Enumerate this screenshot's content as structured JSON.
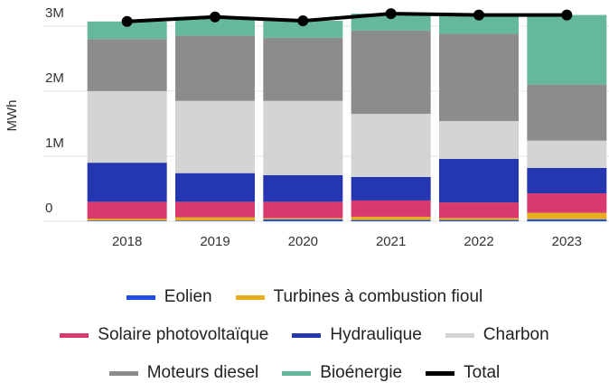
{
  "chart_data": {
    "type": "bar",
    "stacked": true,
    "y_label": "MWh",
    "categories": [
      "2018",
      "2019",
      "2020",
      "2021",
      "2022",
      "2023"
    ],
    "series": [
      {
        "name": "Eolien",
        "color": "#1f4fe0",
        "values": [
          10000,
          10000,
          30000,
          20000,
          20000,
          30000
        ]
      },
      {
        "name": "Turbines à combustion fioul",
        "color": "#e8ad1f",
        "values": [
          30000,
          50000,
          20000,
          50000,
          30000,
          100000
        ]
      },
      {
        "name": "Solaire photovoltaïque",
        "color": "#d93a6e",
        "values": [
          260000,
          240000,
          250000,
          250000,
          240000,
          300000
        ]
      },
      {
        "name": "Hydraulique",
        "color": "#2437b0",
        "values": [
          600000,
          440000,
          410000,
          360000,
          670000,
          390000
        ]
      },
      {
        "name": "Charbon",
        "color": "#d4d4d4",
        "values": [
          1100000,
          1110000,
          1140000,
          970000,
          580000,
          420000
        ]
      },
      {
        "name": "Moteurs diesel",
        "color": "#8c8c8c",
        "values": [
          800000,
          1000000,
          970000,
          1280000,
          1340000,
          860000
        ]
      },
      {
        "name": "Bioénergie",
        "color": "#66b89a",
        "values": [
          270000,
          290000,
          260000,
          260000,
          290000,
          1070000
        ]
      },
      {
        "name": "Total",
        "type": "line",
        "color": "#000000",
        "values": [
          3070000,
          3140000,
          3080000,
          3190000,
          3170000,
          3170000
        ]
      }
    ],
    "ylim": [
      0,
      3400000
    ],
    "yticks": [
      0,
      {
        "value": 1000000,
        "label": "1M"
      },
      {
        "value": 2000000,
        "label": "2M"
      },
      {
        "value": 3000000,
        "label": "3M"
      }
    ],
    "grid": true
  }
}
